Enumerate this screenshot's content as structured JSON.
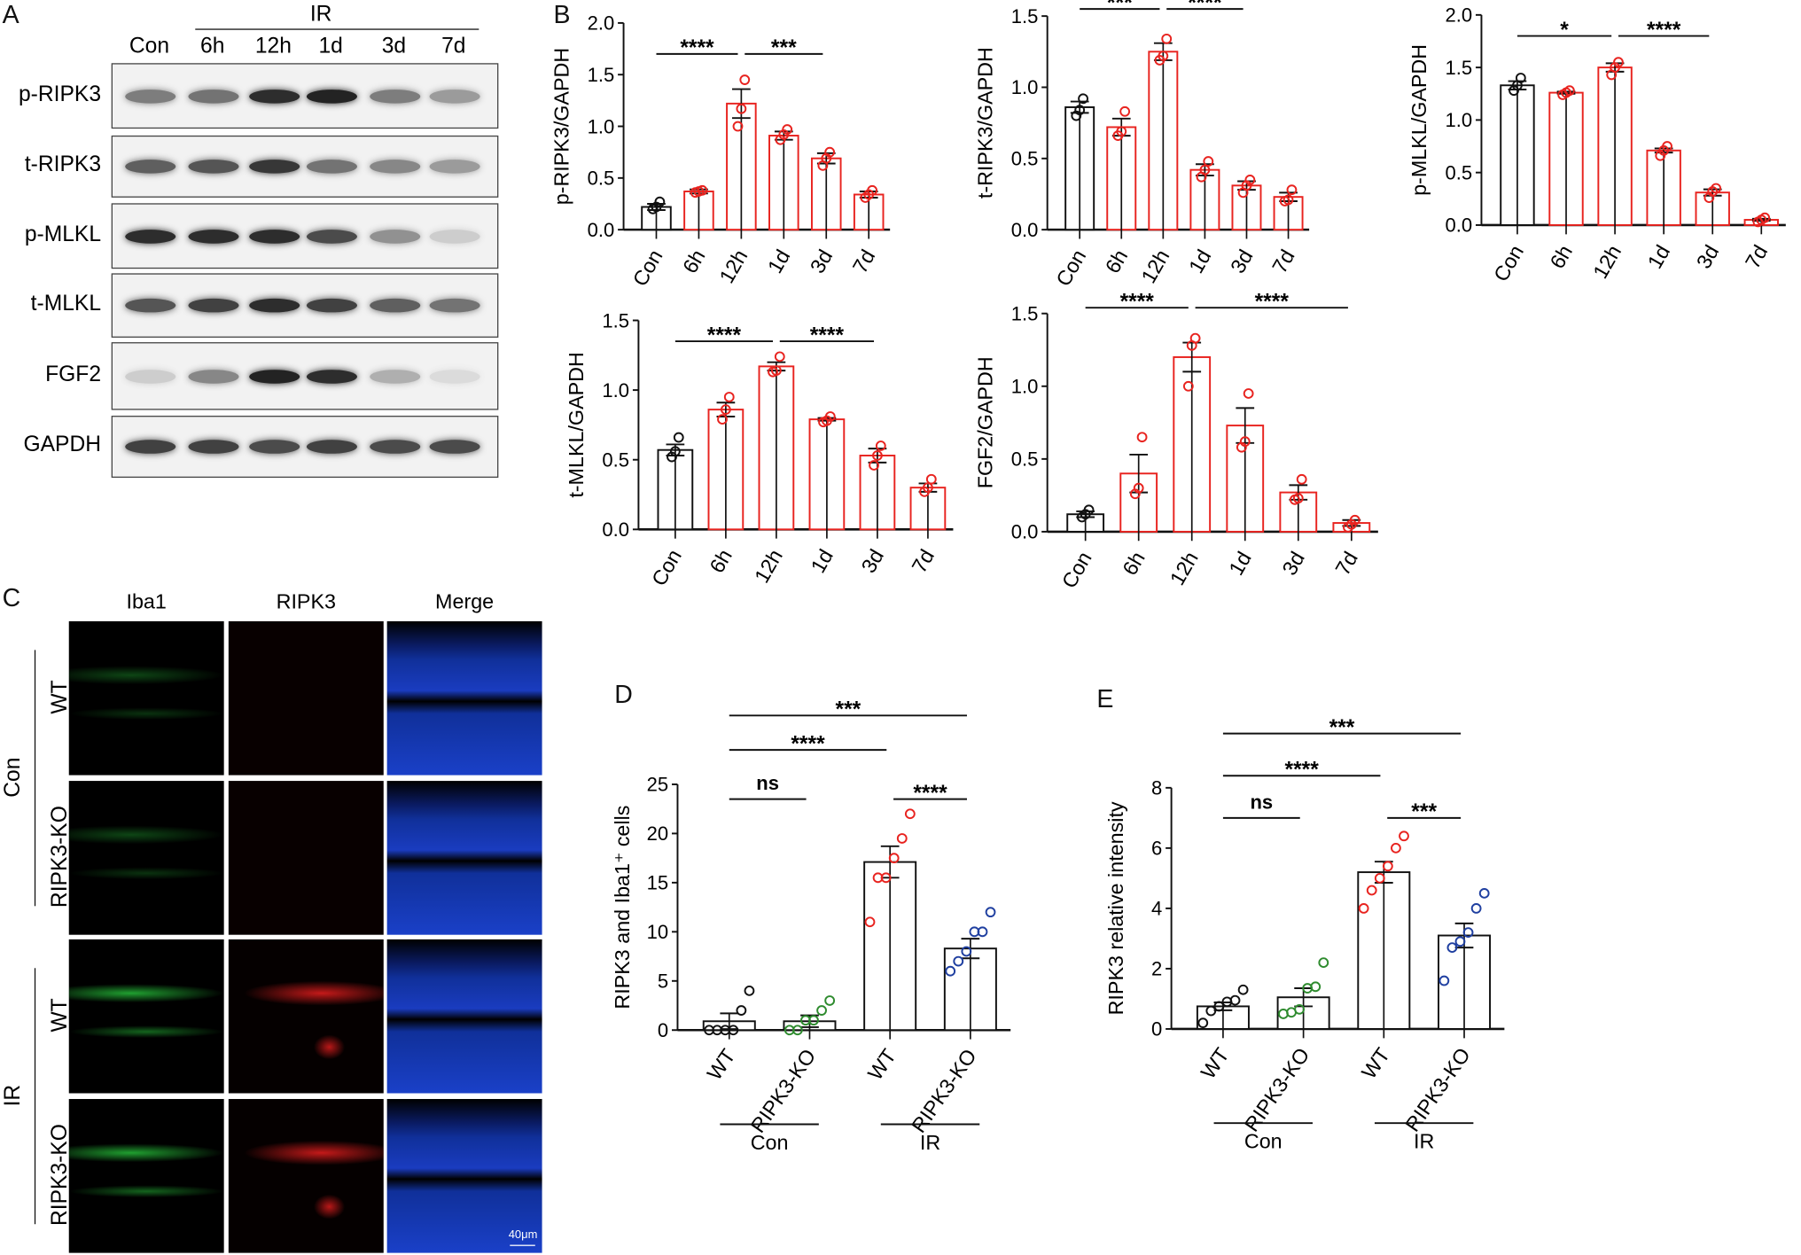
{
  "panels": {
    "A": "A",
    "B": "B",
    "C": "C",
    "D": "D",
    "E": "E"
  },
  "blot": {
    "group_label": "IR",
    "lanes": [
      "Con",
      "6h",
      "12h",
      "1d",
      "3d",
      "7d"
    ],
    "rows": [
      {
        "name": "p-RIPK3",
        "intensity": [
          0.55,
          0.6,
          0.95,
          1.0,
          0.55,
          0.4
        ]
      },
      {
        "name": "t-RIPK3",
        "intensity": [
          0.7,
          0.75,
          0.9,
          0.6,
          0.5,
          0.4
        ]
      },
      {
        "name": "p-MLKL",
        "intensity": [
          0.95,
          0.95,
          0.95,
          0.8,
          0.45,
          0.15
        ]
      },
      {
        "name": "t-MLKL",
        "intensity": [
          0.75,
          0.85,
          0.95,
          0.85,
          0.7,
          0.6
        ]
      },
      {
        "name": "FGF2",
        "intensity": [
          0.15,
          0.5,
          1.0,
          0.95,
          0.3,
          0.08
        ]
      },
      {
        "name": "GAPDH",
        "intensity": [
          0.85,
          0.85,
          0.8,
          0.85,
          0.8,
          0.8
        ]
      }
    ]
  },
  "imaging": {
    "columns": [
      "Iba1",
      "RIPK3",
      "Merge"
    ],
    "groups": [
      {
        "label": "Con",
        "rows": [
          "WT",
          "RIPK3-KO"
        ]
      },
      {
        "label": "IR",
        "rows": [
          "WT",
          "RIPK3-KO"
        ]
      }
    ],
    "scale_bar": "40μm"
  },
  "colors": {
    "control": "#111111",
    "treated": "#e8231f",
    "ko_con": "#2e8b2e",
    "ko_ir": "#1f3fa0"
  },
  "chart_data": [
    {
      "type": "bar",
      "ylabel": "p-RIPK3/GAPDH",
      "categories": [
        "Con",
        "6h",
        "12h",
        "1d",
        "3d",
        "7d"
      ],
      "ylim": [
        0,
        2
      ],
      "yticks": [
        "0.0",
        "0.5",
        "1.0",
        "1.5",
        "2.0"
      ],
      "values": [
        0.22,
        0.37,
        1.22,
        0.91,
        0.69,
        0.34
      ],
      "sem": [
        0.03,
        0.02,
        0.14,
        0.04,
        0.05,
        0.03
      ],
      "points": [
        [
          0.2,
          0.22,
          0.27
        ],
        [
          0.36,
          0.37,
          0.38
        ],
        [
          1.0,
          1.17,
          1.45
        ],
        [
          0.87,
          0.92,
          0.97
        ],
        [
          0.62,
          0.69,
          0.75
        ],
        [
          0.31,
          0.34,
          0.38
        ]
      ],
      "bar_colors": [
        "#111111",
        "#e8231f",
        "#e8231f",
        "#e8231f",
        "#e8231f",
        "#e8231f"
      ],
      "significance": [
        {
          "from": 0,
          "to": 2,
          "y": 1.7,
          "label": "****"
        },
        {
          "from": 2,
          "to": 4,
          "y": 1.7,
          "label": "***"
        }
      ]
    },
    {
      "type": "bar",
      "ylabel": "t-RIPK3/GAPDH",
      "categories": [
        "Con",
        "6h",
        "12h",
        "1d",
        "3d",
        "7d"
      ],
      "ylim": [
        0,
        1.5
      ],
      "yticks": [
        "0.0",
        "0.5",
        "1.0",
        "1.5"
      ],
      "values": [
        0.86,
        0.72,
        1.25,
        0.42,
        0.31,
        0.23
      ],
      "sem": [
        0.04,
        0.06,
        0.06,
        0.04,
        0.03,
        0.03
      ],
      "points": [
        [
          0.8,
          0.84,
          0.92
        ],
        [
          0.66,
          0.69,
          0.83
        ],
        [
          1.19,
          1.22,
          1.34
        ],
        [
          0.37,
          0.42,
          0.48
        ],
        [
          0.26,
          0.31,
          0.35
        ],
        [
          0.2,
          0.21,
          0.28
        ]
      ],
      "bar_colors": [
        "#111111",
        "#e8231f",
        "#e8231f",
        "#e8231f",
        "#e8231f",
        "#e8231f"
      ],
      "significance": [
        {
          "from": 0,
          "to": 2,
          "y": 1.55,
          "label": "***"
        },
        {
          "from": 2,
          "to": 4,
          "y": 1.55,
          "label": "****"
        }
      ]
    },
    {
      "type": "bar",
      "ylabel": "p-MLKL/GAPDH",
      "categories": [
        "Con",
        "6h",
        "12h",
        "1d",
        "3d",
        "7d"
      ],
      "ylim": [
        0,
        2
      ],
      "yticks": [
        "0.0",
        "0.5",
        "1.0",
        "1.5",
        "2.0"
      ],
      "values": [
        1.33,
        1.26,
        1.5,
        0.71,
        0.31,
        0.05
      ],
      "sem": [
        0.04,
        0.01,
        0.04,
        0.02,
        0.03,
        0.01
      ],
      "points": [
        [
          1.28,
          1.33,
          1.4
        ],
        [
          1.24,
          1.26,
          1.28
        ],
        [
          1.43,
          1.5,
          1.55
        ],
        [
          0.66,
          0.71,
          0.75
        ],
        [
          0.26,
          0.32,
          0.35
        ],
        [
          0.03,
          0.05,
          0.07
        ]
      ],
      "bar_colors": [
        "#111111",
        "#e8231f",
        "#e8231f",
        "#e8231f",
        "#e8231f",
        "#e8231f"
      ],
      "significance": [
        {
          "from": 0,
          "to": 2,
          "y": 1.8,
          "label": "*"
        },
        {
          "from": 2,
          "to": 4,
          "y": 1.8,
          "label": "****"
        }
      ]
    },
    {
      "type": "bar",
      "ylabel": "t-MLKL/GAPDH",
      "categories": [
        "Con",
        "6h",
        "12h",
        "1d",
        "3d",
        "7d"
      ],
      "ylim": [
        0,
        1.5
      ],
      "yticks": [
        "0.0",
        "0.5",
        "1.0",
        "1.5"
      ],
      "values": [
        0.57,
        0.86,
        1.17,
        0.79,
        0.53,
        0.3
      ],
      "sem": [
        0.04,
        0.05,
        0.03,
        0.01,
        0.05,
        0.03
      ],
      "points": [
        [
          0.52,
          0.56,
          0.66
        ],
        [
          0.79,
          0.86,
          0.95
        ],
        [
          1.13,
          1.14,
          1.24
        ],
        [
          0.77,
          0.78,
          0.81
        ],
        [
          0.46,
          0.53,
          0.6
        ],
        [
          0.27,
          0.3,
          0.36
        ]
      ],
      "bar_colors": [
        "#111111",
        "#e8231f",
        "#e8231f",
        "#e8231f",
        "#e8231f",
        "#e8231f"
      ],
      "significance": [
        {
          "from": 0,
          "to": 2,
          "y": 1.35,
          "label": "****"
        },
        {
          "from": 2,
          "to": 4,
          "y": 1.35,
          "label": "****"
        }
      ]
    },
    {
      "type": "bar",
      "ylabel": "FGF2/GAPDH",
      "categories": [
        "Con",
        "6h",
        "12h",
        "1d",
        "3d",
        "7d"
      ],
      "ylim": [
        0,
        1.5
      ],
      "yticks": [
        "0.0",
        "0.5",
        "1.0",
        "1.5"
      ],
      "values": [
        0.12,
        0.4,
        1.2,
        0.73,
        0.27,
        0.06
      ],
      "sem": [
        0.02,
        0.13,
        0.1,
        0.12,
        0.05,
        0.02
      ],
      "points": [
        [
          0.1,
          0.12,
          0.15
        ],
        [
          0.26,
          0.3,
          0.65
        ],
        [
          1.0,
          1.28,
          1.33
        ],
        [
          0.58,
          0.62,
          0.95
        ],
        [
          0.22,
          0.23,
          0.36
        ],
        [
          0.03,
          0.05,
          0.08
        ]
      ],
      "bar_colors": [
        "#111111",
        "#e8231f",
        "#e8231f",
        "#e8231f",
        "#e8231f",
        "#e8231f"
      ],
      "significance": [
        {
          "from": 0,
          "to": 2,
          "y": 1.54,
          "label": "****"
        },
        {
          "from": 2,
          "to": 5,
          "y": 1.54,
          "label": "****"
        }
      ]
    },
    {
      "type": "bar",
      "ylabel": "RIPK3 and Iba1⁺ cells",
      "categories": [
        "WT",
        "RIPK3-KO",
        "WT",
        "RIPK3-KO"
      ],
      "groups": [
        {
          "label": "Con",
          "from": 0,
          "to": 1
        },
        {
          "label": "IR",
          "from": 2,
          "to": 3
        }
      ],
      "ylim": [
        0,
        25
      ],
      "yticks": [
        "0",
        "5",
        "10",
        "15",
        "20",
        "25"
      ],
      "values": [
        0.9,
        0.9,
        17.1,
        8.3
      ],
      "sem": [
        0.8,
        0.6,
        1.6,
        1.0
      ],
      "points": [
        [
          0,
          0,
          0,
          0,
          2,
          4
        ],
        [
          0,
          0,
          1,
          1,
          2,
          3
        ],
        [
          11,
          15.5,
          15.5,
          17.5,
          19.5,
          22
        ],
        [
          6,
          7,
          8,
          10,
          10,
          12
        ]
      ],
      "bar_colors": [
        "#111111",
        "#111111",
        "#111111",
        "#111111"
      ],
      "point_colors": [
        "#111111",
        "#2e8b2e",
        "#e8231f",
        "#1f3fa0"
      ],
      "significance": [
        {
          "from": 0,
          "to": 1,
          "y": 23.5,
          "label": "ns"
        },
        {
          "from": 2,
          "to": 3,
          "y": 23.5,
          "label": "****"
        },
        {
          "from": 0,
          "to": 2,
          "y": 28.5,
          "label": "****"
        },
        {
          "from": 0,
          "to": 3,
          "y": 32,
          "label": "***"
        }
      ]
    },
    {
      "type": "bar",
      "ylabel": "RIPK3 relative intensity",
      "categories": [
        "WT",
        "RIPK3-KO",
        "WT",
        "RIPK3-KO"
      ],
      "groups": [
        {
          "label": "Con",
          "from": 0,
          "to": 1
        },
        {
          "label": "IR",
          "from": 2,
          "to": 3
        }
      ],
      "ylim": [
        0,
        8
      ],
      "yticks": [
        "0",
        "2",
        "4",
        "6",
        "8"
      ],
      "values": [
        0.75,
        1.05,
        5.2,
        3.1
      ],
      "sem": [
        0.13,
        0.3,
        0.35,
        0.4
      ],
      "points": [
        [
          0.2,
          0.6,
          0.75,
          0.9,
          0.95,
          1.3
        ],
        [
          0.5,
          0.55,
          0.65,
          1.35,
          1.4,
          2.2
        ],
        [
          4.0,
          4.6,
          5.0,
          5.4,
          6.0,
          6.4
        ],
        [
          1.6,
          2.7,
          2.9,
          3.2,
          4.0,
          4.5
        ]
      ],
      "bar_colors": [
        "#111111",
        "#111111",
        "#111111",
        "#111111"
      ],
      "point_colors": [
        "#111111",
        "#2e8b2e",
        "#e8231f",
        "#1f3fa0"
      ],
      "significance": [
        {
          "from": 0,
          "to": 1,
          "y": 7.0,
          "label": "ns"
        },
        {
          "from": 2,
          "to": 3,
          "y": 7.0,
          "label": "***"
        },
        {
          "from": 0,
          "to": 2,
          "y": 8.4,
          "label": "****"
        },
        {
          "from": 0,
          "to": 3,
          "y": 9.8,
          "label": "***"
        }
      ]
    }
  ]
}
